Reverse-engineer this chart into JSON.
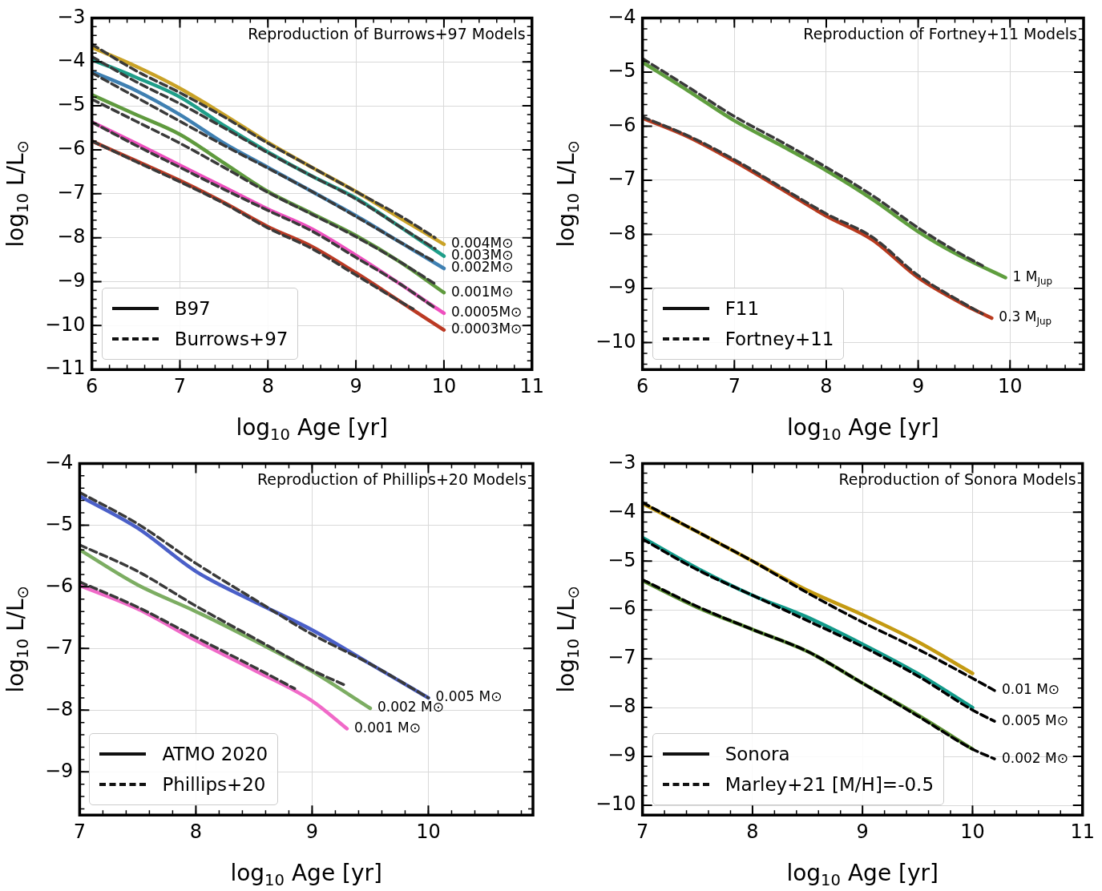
{
  "chart_data": [
    {
      "type": "line",
      "title": "Reproduction of Burrows+97 Models",
      "xlabel": "log$_{10}$ Age [yr]",
      "ylabel": "log$_{10}$ L/L$_{⊙}$",
      "xlim": [
        6,
        11
      ],
      "ylim": [
        -11,
        -3
      ],
      "xticks": [
        6,
        7,
        8,
        9,
        10,
        11
      ],
      "yticks": [
        -11,
        -10,
        -9,
        -8,
        -7,
        -6,
        -5,
        -4,
        -3
      ],
      "grid": true,
      "series": [
        {
          "color": "#c9a227",
          "line_style": "solid",
          "x": [
            6,
            6.5,
            7,
            7.5,
            8,
            8.5,
            9,
            9.5,
            10
          ],
          "values": [
            -3.67,
            -4.1,
            -4.6,
            -5.2,
            -5.83,
            -6.4,
            -6.95,
            -7.55,
            -8.15
          ]
        },
        {
          "color": "#3a3a3a",
          "line_style": "dashed",
          "x": [
            6,
            6.5,
            7,
            7.5,
            8,
            8.5,
            9,
            9.5,
            9.9
          ],
          "values": [
            -3.6,
            -4.2,
            -4.7,
            -5.25,
            -5.85,
            -6.4,
            -6.95,
            -7.5,
            -8.0
          ]
        },
        {
          "color": "#1f9e89",
          "line_style": "solid",
          "x": [
            6,
            6.5,
            7,
            7.5,
            8,
            8.5,
            9,
            9.5,
            10
          ],
          "values": [
            -3.95,
            -4.35,
            -4.8,
            -5.45,
            -6.05,
            -6.6,
            -7.1,
            -7.75,
            -8.42
          ]
        },
        {
          "color": "#3a3a3a",
          "line_style": "dashed",
          "x": [
            6,
            6.5,
            7,
            7.5,
            8,
            8.5,
            9,
            9.5,
            9.9
          ],
          "values": [
            -3.88,
            -4.45,
            -4.95,
            -5.5,
            -6.07,
            -6.6,
            -7.12,
            -7.75,
            -8.25
          ]
        },
        {
          "color": "#3f80b2",
          "line_style": "solid",
          "x": [
            6,
            6.5,
            7,
            7.5,
            8,
            8.5,
            9,
            9.5,
            10
          ],
          "values": [
            -4.22,
            -4.65,
            -5.2,
            -5.85,
            -6.4,
            -6.95,
            -7.5,
            -8.1,
            -8.7
          ]
        },
        {
          "color": "#3a3a3a",
          "line_style": "dashed",
          "x": [
            6,
            6.5,
            7,
            7.5,
            8,
            8.5,
            9,
            9.5,
            9.9
          ],
          "values": [
            -4.25,
            -4.8,
            -5.35,
            -5.9,
            -6.42,
            -6.95,
            -7.52,
            -8.1,
            -8.55
          ]
        },
        {
          "color": "#5f9a3e",
          "line_style": "solid",
          "x": [
            6,
            6.5,
            7,
            7.5,
            8,
            8.5,
            9,
            9.5,
            10
          ],
          "values": [
            -4.75,
            -5.2,
            -5.65,
            -6.3,
            -6.95,
            -7.45,
            -7.95,
            -8.55,
            -9.25
          ]
        },
        {
          "color": "#3a3a3a",
          "line_style": "dashed",
          "x": [
            6,
            6.5,
            7,
            7.5,
            8,
            8.5,
            9,
            9.5,
            9.9
          ],
          "values": [
            -4.85,
            -5.35,
            -5.85,
            -6.4,
            -6.97,
            -7.47,
            -7.98,
            -8.55,
            -9.05
          ]
        },
        {
          "color": "#ee4fbe",
          "line_style": "solid",
          "x": [
            6,
            6.5,
            7,
            7.5,
            8,
            8.5,
            9,
            9.5,
            10
          ],
          "values": [
            -5.37,
            -5.85,
            -6.35,
            -6.85,
            -7.35,
            -7.8,
            -8.4,
            -9.05,
            -9.72
          ]
        },
        {
          "color": "#3a3a3a",
          "line_style": "dashed",
          "x": [
            6,
            6.5,
            7,
            7.5,
            8,
            8.5,
            9,
            9.5,
            9.9
          ],
          "values": [
            -5.37,
            -5.9,
            -6.4,
            -6.9,
            -7.38,
            -7.85,
            -8.45,
            -9.05,
            -9.6
          ]
        },
        {
          "color": "#bb3a24",
          "line_style": "solid",
          "x": [
            6,
            6.5,
            7,
            7.5,
            8,
            8.5,
            9,
            9.5,
            10
          ],
          "values": [
            -5.8,
            -6.25,
            -6.7,
            -7.2,
            -7.75,
            -8.2,
            -8.8,
            -9.45,
            -10.1
          ]
        },
        {
          "color": "#3a3a3a",
          "line_style": "dashed",
          "x": [
            6,
            6.5,
            7,
            7.5,
            8,
            8.5,
            9,
            9.5,
            9.65
          ],
          "values": [
            -5.8,
            -6.27,
            -6.73,
            -7.22,
            -7.78,
            -8.25,
            -8.85,
            -9.45,
            -9.62
          ]
        }
      ],
      "annotations": [
        "B97",
        "Burrows+97",
        {
          "text": "0.004M⊙",
          "x": 10,
          "y": -8.15
        },
        {
          "text": "0.003M⊙",
          "x": 10,
          "y": -8.42
        },
        {
          "text": "0.002M⊙",
          "x": 10,
          "y": -8.7
        },
        {
          "text": "0.001M⊙",
          "x": 10,
          "y": -9.25
        },
        {
          "text": "0.0005M⊙",
          "x": 10,
          "y": -9.72
        },
        {
          "text": "0.0003M⊙",
          "x": 10,
          "y": -10.1
        }
      ]
    },
    {
      "type": "line",
      "title": "Reproduction of Fortney+11 Models",
      "xlabel": "log$_{10}$ Age [yr]",
      "ylabel": "log$_{10}$ L/L$_{⊙}$",
      "xlim": [
        6,
        10.8
      ],
      "ylim": [
        -10.5,
        -4
      ],
      "xticks": [
        6,
        7,
        8,
        9,
        10
      ],
      "yticks": [
        -10,
        -9,
        -8,
        -7,
        -6,
        -5,
        -4
      ],
      "grid": true,
      "series": [
        {
          "color": "#5f9e3e",
          "line_style": "solid",
          "x": [
            6,
            6.5,
            7,
            7.5,
            8,
            8.5,
            9,
            9.4,
            9.7,
            9.95
          ],
          "values": [
            -4.82,
            -5.35,
            -5.9,
            -6.35,
            -6.82,
            -7.35,
            -7.95,
            -8.35,
            -8.6,
            -8.8
          ]
        },
        {
          "color": "#3a3a3a",
          "line_style": "dashed",
          "x": [
            6,
            6.5,
            7,
            7.5,
            8,
            8.5,
            9,
            9.4,
            9.7
          ],
          "values": [
            -4.75,
            -5.28,
            -5.82,
            -6.28,
            -6.76,
            -7.28,
            -7.88,
            -8.3,
            -8.58
          ]
        },
        {
          "color": "#b83a1e",
          "line_style": "solid",
          "x": [
            6,
            6.5,
            7,
            7.5,
            8,
            8.5,
            9,
            9.5,
            9.8
          ],
          "values": [
            -5.85,
            -6.2,
            -6.65,
            -7.15,
            -7.66,
            -8.1,
            -8.8,
            -9.3,
            -9.55
          ]
        },
        {
          "color": "#3a3a3a",
          "line_style": "dashed",
          "x": [
            6,
            6.5,
            7,
            7.5,
            8,
            8.5,
            9,
            9.5,
            9.7
          ],
          "values": [
            -5.83,
            -6.18,
            -6.62,
            -7.12,
            -7.62,
            -8.05,
            -8.76,
            -9.28,
            -9.47
          ]
        }
      ],
      "annotations": [
        "F11",
        "Fortney+11",
        {
          "text": "1 M$_{Jup}$",
          "x": 9.95,
          "y": -8.8
        },
        {
          "text": "0.3 M$_{Jup}$",
          "x": 9.8,
          "y": -9.55
        }
      ]
    },
    {
      "type": "line",
      "title": "Reproduction of Phillips+20 Models",
      "xlabel": "log$_{10}$ Age [yr]",
      "ylabel": "log$_{10}$ L/L$_{⊙}$",
      "xlim": [
        7,
        10.9
      ],
      "ylim": [
        -9.7,
        -4
      ],
      "xticks": [
        7,
        8,
        9,
        10
      ],
      "yticks": [
        -9,
        -8,
        -7,
        -6,
        -5,
        -4
      ],
      "grid": true,
      "series": [
        {
          "color": "#4a5fc8",
          "line_style": "solid",
          "x": [
            7,
            7.5,
            8,
            8.5,
            9,
            9.5,
            10
          ],
          "values": [
            -4.53,
            -5.05,
            -5.75,
            -6.24,
            -6.7,
            -7.25,
            -7.8
          ]
        },
        {
          "color": "#3a3a3a",
          "line_style": "dashed",
          "x": [
            7,
            7.5,
            8,
            8.5,
            9,
            9.5,
            10
          ],
          "values": [
            -4.47,
            -4.98,
            -5.62,
            -6.2,
            -6.77,
            -7.25,
            -7.8
          ]
        },
        {
          "color": "#7cad62",
          "line_style": "solid",
          "x": [
            7,
            7.5,
            8,
            8.5,
            9,
            9.5
          ],
          "values": [
            -5.4,
            -5.97,
            -6.4,
            -6.87,
            -7.37,
            -7.97
          ]
        },
        {
          "color": "#3a3a3a",
          "line_style": "dashed",
          "x": [
            7,
            7.5,
            8,
            8.5,
            9,
            9.3
          ],
          "values": [
            -5.32,
            -5.75,
            -6.31,
            -6.83,
            -7.35,
            -7.61
          ]
        },
        {
          "color": "#f06ac8",
          "line_style": "solid",
          "x": [
            7,
            7.5,
            8,
            8.5,
            9,
            9.3
          ],
          "values": [
            -5.98,
            -6.36,
            -6.87,
            -7.35,
            -7.85,
            -8.3
          ]
        },
        {
          "color": "#3a3a3a",
          "line_style": "dashed",
          "x": [
            7,
            7.5,
            8,
            8.5,
            8.85
          ],
          "values": [
            -5.92,
            -6.33,
            -6.82,
            -7.3,
            -7.65
          ]
        }
      ],
      "annotations": [
        "ATMO 2020",
        "Phillips+20",
        {
          "text": "0.005 M⊙",
          "x": 10,
          "y": -7.8
        },
        {
          "text": "0.002 M⊙",
          "x": 9.5,
          "y": -7.97
        },
        {
          "text": "0.001 M⊙",
          "x": 9.3,
          "y": -8.3
        }
      ]
    },
    {
      "type": "line",
      "title": "Reproduction of Sonora Models",
      "xlabel": "log$_{10}$ Age [yr]",
      "ylabel": "log$_{10}$ L/L$_{⊙}$",
      "xlim": [
        7,
        11
      ],
      "ylim": [
        -10.2,
        -3
      ],
      "xticks": [
        7,
        8,
        9,
        10,
        11
      ],
      "yticks": [
        -10,
        -9,
        -8,
        -7,
        -6,
        -5,
        -4,
        -3
      ],
      "grid": true,
      "series": [
        {
          "color": "#c49a12",
          "line_style": "solid",
          "x": [
            7,
            7.5,
            8,
            8.5,
            9,
            9.5,
            10
          ],
          "values": [
            -3.82,
            -4.4,
            -5.0,
            -5.6,
            -6.1,
            -6.65,
            -7.3
          ]
        },
        {
          "color": "#000000",
          "line_style": "dashed",
          "x": [
            7,
            7.5,
            8,
            8.5,
            9,
            9.5,
            10,
            10.2
          ],
          "values": [
            -3.8,
            -4.4,
            -5.0,
            -5.65,
            -6.25,
            -6.8,
            -7.4,
            -7.65
          ]
        },
        {
          "color": "#129a8a",
          "line_style": "solid",
          "x": [
            7,
            7.5,
            8,
            8.5,
            9,
            9.5,
            10
          ],
          "values": [
            -4.52,
            -5.15,
            -5.7,
            -6.15,
            -6.7,
            -7.3,
            -8.0
          ]
        },
        {
          "color": "#000000",
          "line_style": "dashed",
          "x": [
            7,
            7.5,
            8,
            8.5,
            9,
            9.5,
            10,
            10.2
          ],
          "values": [
            -4.55,
            -5.18,
            -5.7,
            -6.22,
            -6.75,
            -7.35,
            -8.05,
            -8.28
          ]
        },
        {
          "color": "#5b8f32",
          "line_style": "solid",
          "x": [
            7,
            7.5,
            8,
            8.5,
            9,
            9.5,
            10
          ],
          "values": [
            -5.4,
            -5.95,
            -6.4,
            -6.85,
            -7.5,
            -8.15,
            -8.85
          ]
        },
        {
          "color": "#000000",
          "line_style": "dashed",
          "x": [
            7,
            7.5,
            8,
            8.5,
            9,
            9.5,
            10,
            10.2
          ],
          "values": [
            -5.38,
            -5.93,
            -6.4,
            -6.85,
            -7.5,
            -8.17,
            -8.85,
            -9.05
          ]
        }
      ],
      "annotations": [
        "Sonora",
        "Marley+21 [M/H]=-0.5",
        {
          "text": "0.01 M⊙",
          "x": 10.2,
          "y": -7.65
        },
        {
          "text": "0.005 M⊙",
          "x": 10.2,
          "y": -8.28
        },
        {
          "text": "0.002 M⊙",
          "x": 10.2,
          "y": -9.05
        }
      ]
    }
  ]
}
